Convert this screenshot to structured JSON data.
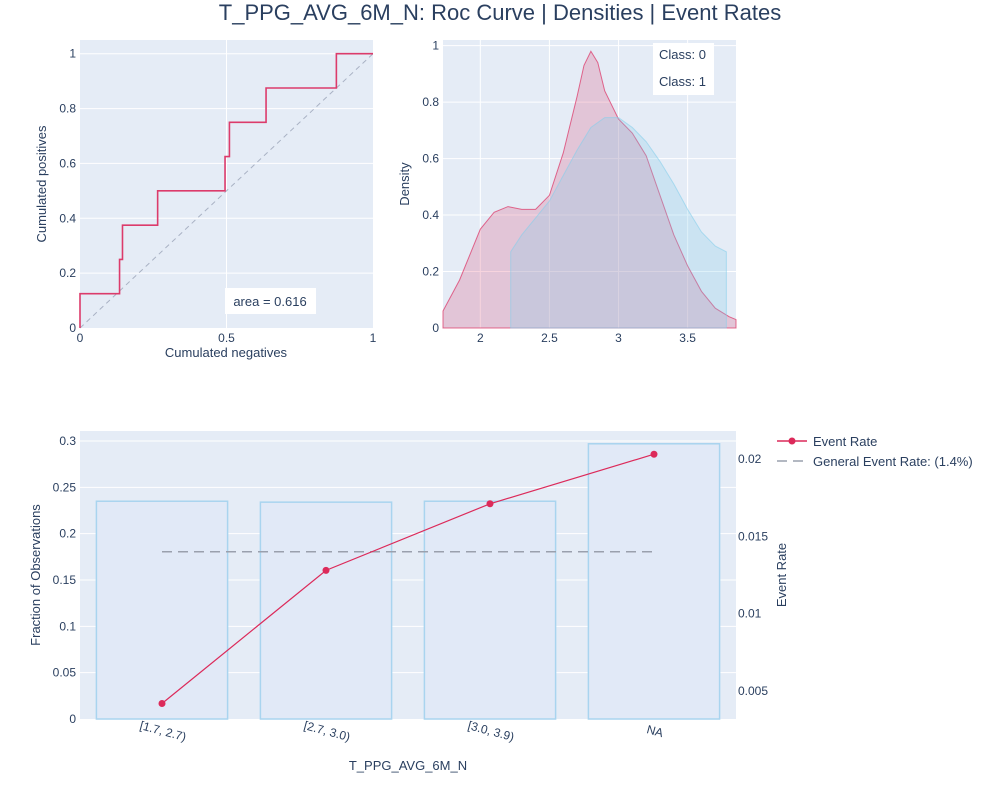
{
  "title": "T_PPG_AVG_6M_N: Roc Curve | Densities | Event Rates",
  "colors": {
    "class0": "#dc3b6b",
    "class1": "#87ceeb",
    "event_rate": "#dc2a5a",
    "general_rate": "#9aa0ad",
    "bar_fill": "#e1e9f7",
    "bar_edge": "#a9d4ef"
  },
  "chart_data": [
    {
      "type": "line",
      "name": "roc",
      "xlabel": "Cumulated negatives",
      "ylabel": "Cumulated positives",
      "xlim": [
        0,
        1
      ],
      "ylim": [
        0,
        1.05
      ],
      "xticks": [
        0,
        0.5,
        1
      ],
      "xtick_labels": [
        "0",
        "0.5",
        "1"
      ],
      "yticks": [
        0,
        0.2,
        0.4,
        0.6,
        0.8,
        1
      ],
      "ytick_labels": [
        "0",
        "0.2",
        "0.4",
        "0.6",
        "0.8",
        "1"
      ],
      "roc_points": [
        [
          0,
          0
        ],
        [
          0,
          0.125
        ],
        [
          0.135,
          0.125
        ],
        [
          0.135,
          0.25
        ],
        [
          0.145,
          0.25
        ],
        [
          0.145,
          0.375
        ],
        [
          0.265,
          0.375
        ],
        [
          0.265,
          0.5
        ],
        [
          0.495,
          0.5
        ],
        [
          0.495,
          0.625
        ],
        [
          0.51,
          0.625
        ],
        [
          0.51,
          0.75
        ],
        [
          0.635,
          0.75
        ],
        [
          0.635,
          0.875
        ],
        [
          0.875,
          0.875
        ],
        [
          0.875,
          1
        ],
        [
          1,
          1
        ]
      ],
      "diagonal": [
        [
          0,
          0
        ],
        [
          1,
          1
        ]
      ],
      "annotation": "area = 0.616"
    },
    {
      "type": "area",
      "name": "densities",
      "ylabel": "Density",
      "xlim": [
        1.73,
        3.85
      ],
      "ylim": [
        0,
        1.02
      ],
      "xticks": [
        2,
        2.5,
        3,
        3.5
      ],
      "xtick_labels": [
        "2",
        "2.5",
        "3",
        "3.5"
      ],
      "yticks": [
        0,
        0.2,
        0.4,
        0.6,
        0.8,
        1
      ],
      "yticks_labels": [
        "0",
        "0.2",
        "0.4",
        "0.6",
        "0.8",
        "1"
      ],
      "series": [
        {
          "name": "Class: 0",
          "x": [
            1.73,
            1.85,
            2.0,
            2.1,
            2.2,
            2.3,
            2.4,
            2.5,
            2.6,
            2.7,
            2.75,
            2.8,
            2.85,
            2.9,
            3.0,
            3.1,
            3.2,
            3.3,
            3.4,
            3.5,
            3.6,
            3.7,
            3.8,
            3.85
          ],
          "y": [
            0.06,
            0.17,
            0.35,
            0.41,
            0.43,
            0.42,
            0.42,
            0.47,
            0.62,
            0.82,
            0.93,
            0.98,
            0.94,
            0.84,
            0.74,
            0.69,
            0.61,
            0.47,
            0.33,
            0.22,
            0.13,
            0.07,
            0.04,
            0.03
          ]
        },
        {
          "name": "Class: 1",
          "x": [
            2.22,
            2.3,
            2.4,
            2.5,
            2.6,
            2.7,
            2.8,
            2.9,
            3.0,
            3.1,
            3.2,
            3.3,
            3.4,
            3.5,
            3.6,
            3.7,
            3.78
          ],
          "y": [
            0.27,
            0.33,
            0.39,
            0.45,
            0.54,
            0.63,
            0.71,
            0.745,
            0.745,
            0.71,
            0.66,
            0.59,
            0.51,
            0.42,
            0.34,
            0.29,
            0.27
          ]
        }
      ]
    },
    {
      "type": "bar",
      "name": "event_rates",
      "xlabel": "T_PPG_AVG_6M_N",
      "ylabel": "Fraction of Observations",
      "y2label": "Event Rate",
      "categories": [
        "[1.7, 2.7)",
        "[2.7, 3.0)",
        "[3.0, 3.9)",
        "NA"
      ],
      "fractions": [
        0.235,
        0.234,
        0.235,
        0.297
      ],
      "event_rates": [
        0.0042,
        0.0128,
        0.0171,
        0.0203
      ],
      "general_rate": 0.014,
      "ylim": [
        0,
        0.3
      ],
      "y2lim": [
        0.0032,
        0.0218
      ],
      "yticks": [
        0,
        0.05,
        0.1,
        0.15,
        0.2,
        0.25,
        0.3
      ],
      "ytick_labels": [
        "0",
        "0.05",
        "0.1",
        "0.15",
        "0.2",
        "0.25",
        "0.3"
      ],
      "y2ticks": [
        0.005,
        0.01,
        0.015,
        0.02
      ],
      "y2tick_labels": [
        "0.005",
        "0.01",
        "0.015",
        "0.02"
      ],
      "legend": [
        "Event Rate",
        "General Event Rate: (1.4%)"
      ]
    }
  ]
}
